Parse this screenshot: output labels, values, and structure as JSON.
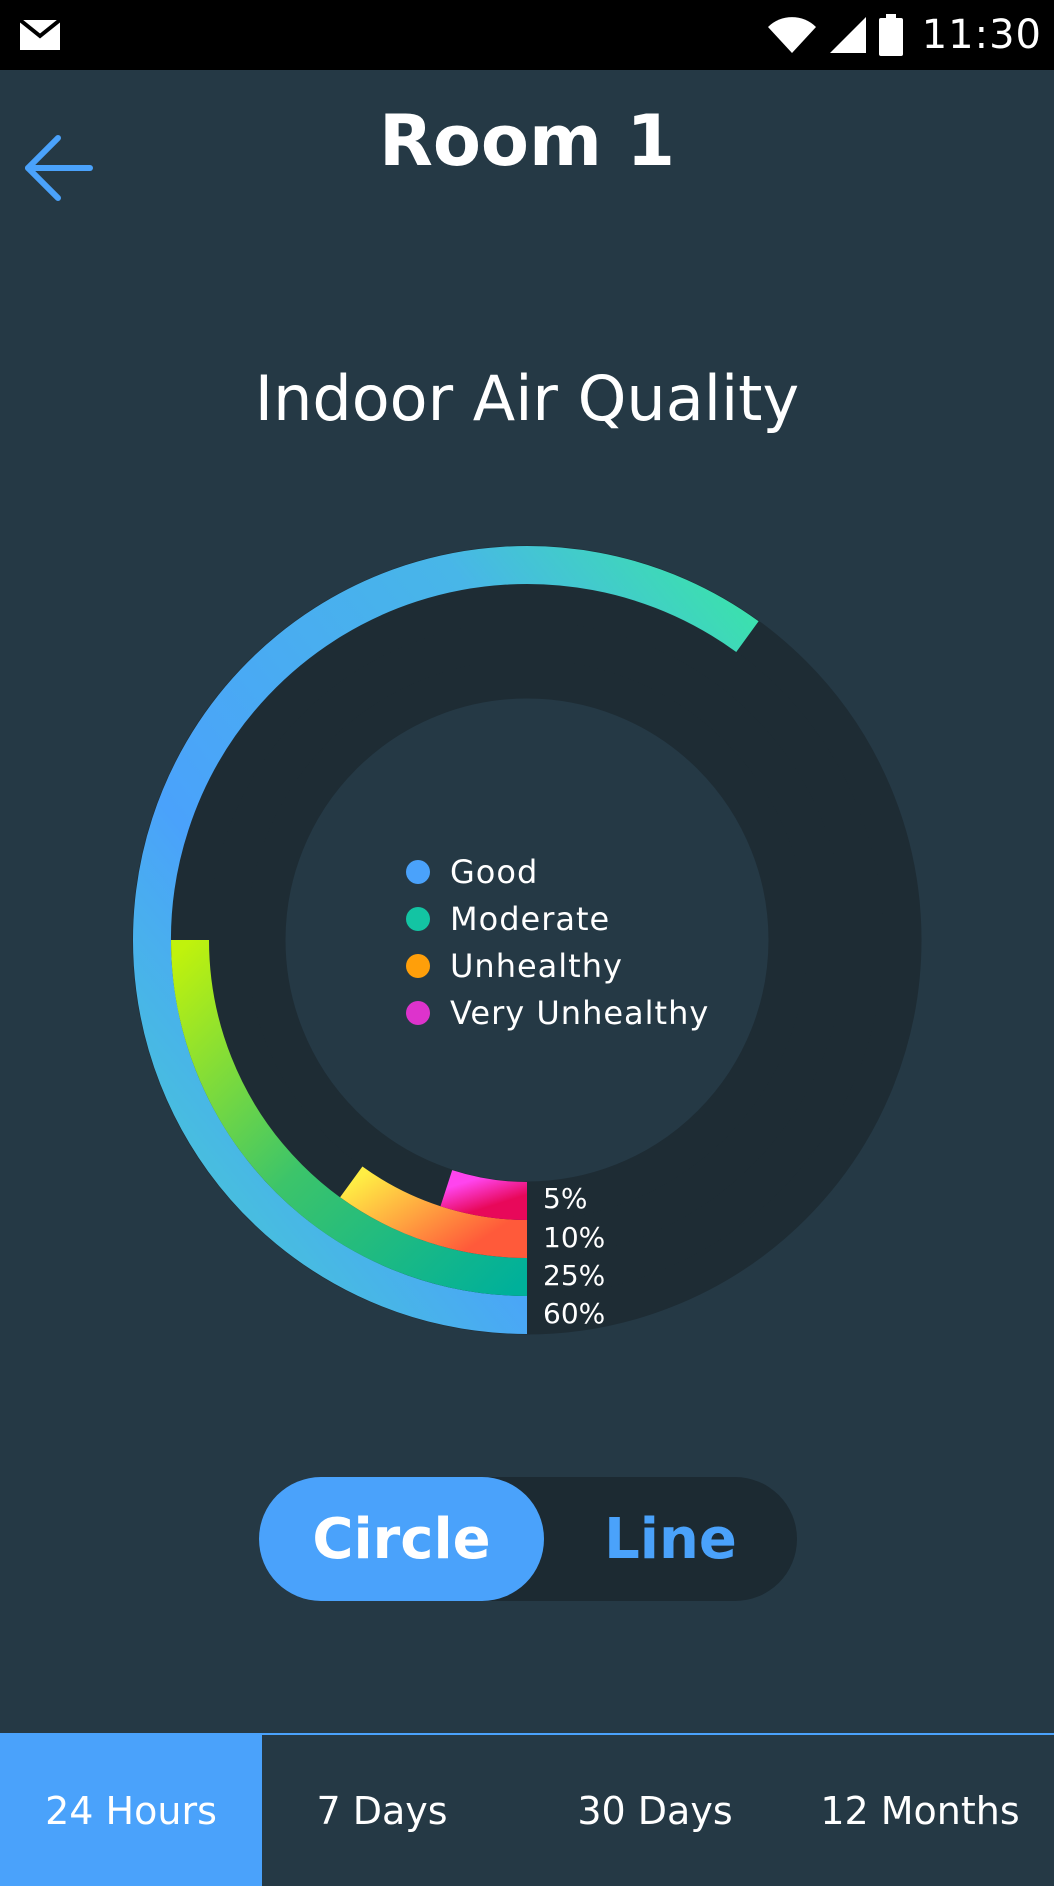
{
  "status_bar": {
    "time": "11:30",
    "icons": [
      "mail-icon",
      "wifi-icon",
      "signal-icon",
      "battery-icon"
    ]
  },
  "header": {
    "title": "Room 1",
    "back_icon": "arrow-left-icon"
  },
  "chart_title": "Indoor Air Quality",
  "colors": {
    "background": "#253945",
    "accent": "#4aa2fb",
    "track": "#1e2c34",
    "good": "#4aa2fb",
    "moderate": "#13c4a3",
    "unhealthy": "#ff9f0a",
    "very_unhealthy": "#dd33cc"
  },
  "chart_data": {
    "type": "pie",
    "style": "radial-rings",
    "legend": [
      "Good",
      "Moderate",
      "Unhealthy",
      "Very Unhealthy"
    ],
    "legend_placement": "center",
    "series": [
      {
        "name": "Good",
        "value": 60,
        "label": "60%"
      },
      {
        "name": "Moderate",
        "value": 25,
        "label": "25%"
      },
      {
        "name": "Unhealthy",
        "value": 10,
        "label": "10%"
      },
      {
        "name": "Very Unhealthy",
        "value": 5,
        "label": "5%"
      }
    ]
  },
  "view_toggle": {
    "options": [
      "Circle",
      "Line"
    ],
    "selected": "Circle"
  },
  "time_tabs": {
    "options": [
      "24 Hours",
      "7 Days",
      "30 Days",
      "12 Months"
    ],
    "selected": "24 Hours"
  }
}
